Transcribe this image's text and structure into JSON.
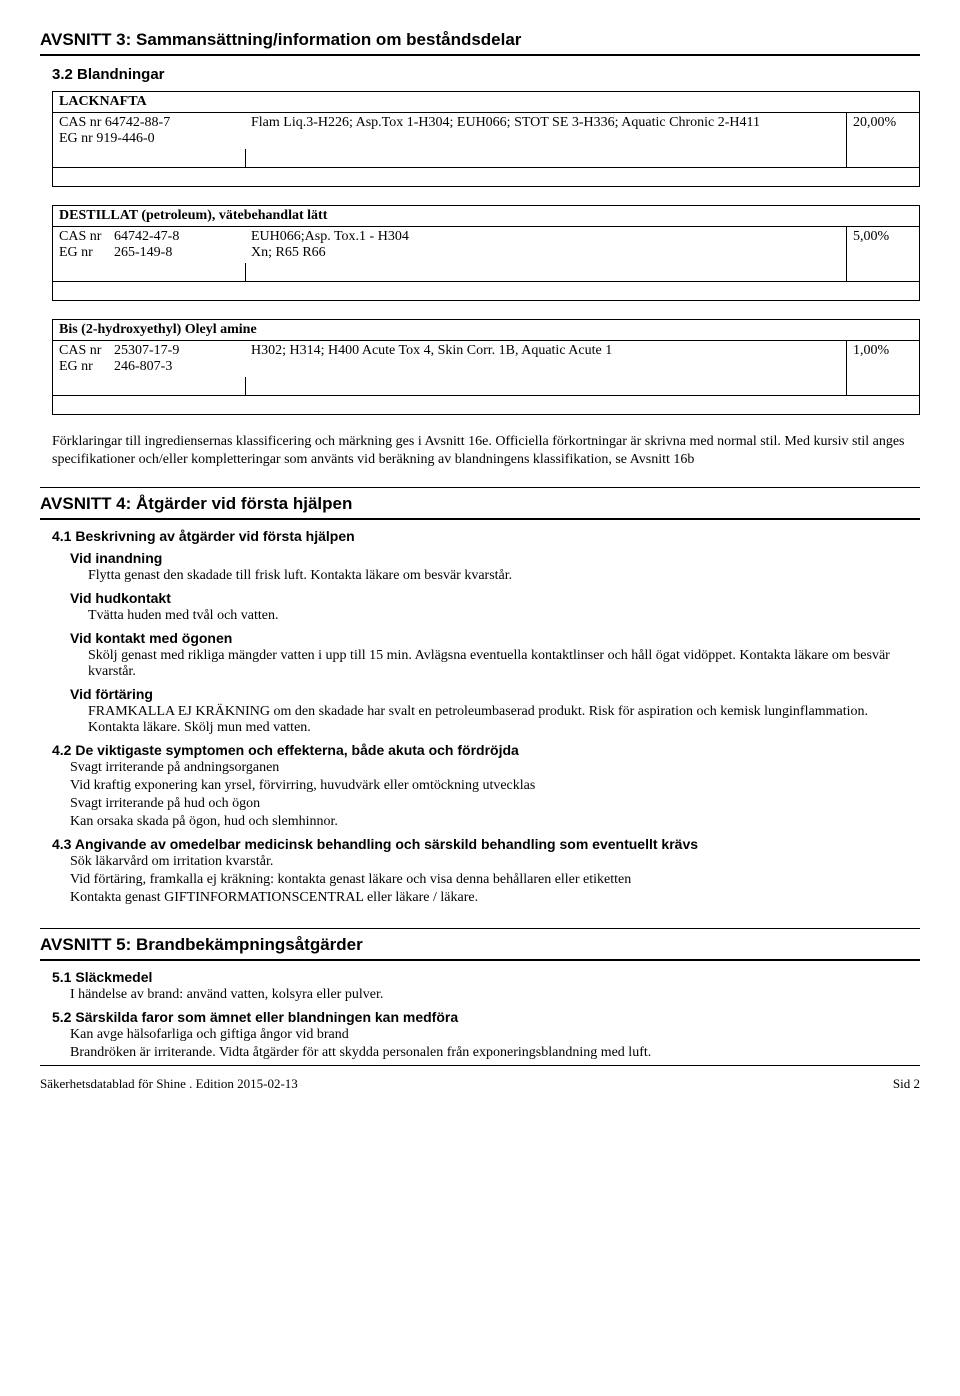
{
  "section3": {
    "title": "AVSNITT 3: Sammansättning/information om beståndsdelar",
    "sub": "3.2 Blandningar",
    "comp1": {
      "name": "LACKNAFTA",
      "cas_label": "CAS nr 64742-88-7",
      "eg_label": "EG nr 919-446-0",
      "hazard_line1": "Flam Liq.3-H226; Asp.Tox 1-H304; EUH066; STOT SE 3-H336; Aquatic Chronic 2-H411",
      "pct": "20,00%"
    },
    "comp2": {
      "name": "DESTILLAT (petroleum), vätebehandlat lätt",
      "cas_l": "CAS nr",
      "cas_v": "64742-47-8",
      "eg_l": "EG nr",
      "eg_v": "265-149-8",
      "hazard_line1": "EUH066;Asp. Tox.1 - H304",
      "hazard_line2": "Xn; R65 R66",
      "pct": "5,00%"
    },
    "comp3": {
      "name": "Bis (2-hydroxyethyl) Oleyl amine",
      "cas_l": "CAS nr",
      "cas_v": "25307-17-9",
      "eg_l": "EG nr",
      "eg_v": "246-807-3",
      "hazard_line1": "H302; H314; H400 Acute Tox 4, Skin Corr. 1B, Aquatic Acute 1",
      "pct": "1,00%"
    },
    "explain": "Förklaringar till ingrediensernas klassificering och märkning ges i Avsnitt 16e. Officiella förkortningar är skrivna med normal stil. Med kursiv stil anges specifikationer och/eller kompletteringar som använts vid beräkning av blandningens klassifikation, se Avsnitt 16b"
  },
  "section4": {
    "title": "AVSNITT 4: Åtgärder vid första hjälpen",
    "s41": "4.1 Beskrivning av åtgärder vid första hjälpen",
    "inhalation_h": "Vid inandning",
    "inhalation_t": "Flytta genast den skadade till frisk luft. Kontakta läkare om besvär kvarstår.",
    "skin_h": "Vid hudkontakt",
    "skin_t": "Tvätta huden med tvål och vatten.",
    "eye_h": "Vid kontakt med ögonen",
    "eye_t": "Skölj genast med rikliga mängder vatten i upp till 15 min. Avlägsna eventuella kontaktlinser och håll ögat vidöppet. Kontakta läkare om besvär kvarstår.",
    "ingest_h": "Vid förtäring",
    "ingest_t": "FRAMKALLA EJ KRÄKNING om den skadade har svalt en petroleumbaserad produkt. Risk för aspiration och kemisk lunginflammation. Kontakta läkare. Skölj mun med vatten.",
    "s42": "4.2 De viktigaste symptomen och effekterna, både akuta och fördröjda",
    "s42_1": "Svagt irriterande på andningsorganen",
    "s42_2": "Vid kraftig exponering kan yrsel, förvirring, huvudvärk eller omtöckning utvecklas",
    "s42_3": "Svagt irriterande på hud och ögon",
    "s42_4": "Kan orsaka skada på ögon, hud och slemhinnor.",
    "s43": "4.3 Angivande av omedelbar medicinsk behandling och särskild behandling som eventuellt krävs",
    "s43_1": "Sök läkarvård om irritation kvarstår.",
    "s43_2": "Vid förtäring, framkalla ej kräkning: kontakta genast läkare och visa denna behållaren eller etiketten",
    "s43_3": "Kontakta genast GIFTINFORMATIONSCENTRAL eller läkare / läkare."
  },
  "section5": {
    "title": "AVSNITT 5: Brandbekämpningsåtgärder",
    "s51": "5.1 Släckmedel",
    "s51_t": "I händelse av brand: använd vatten, kolsyra eller pulver.",
    "s52": "5.2 Särskilda faror som ämnet eller blandningen kan medföra",
    "s52_1": "Kan avge hälsofarliga och giftiga ångor vid brand",
    "s52_2": "Brandröken är irriterande. Vidta åtgärder för att skydda personalen från exponeringsblandning med luft."
  },
  "footer": {
    "left": "Säkerhetsdatablad för Shine . Edition 2015-02-13",
    "right": "Sid 2"
  }
}
